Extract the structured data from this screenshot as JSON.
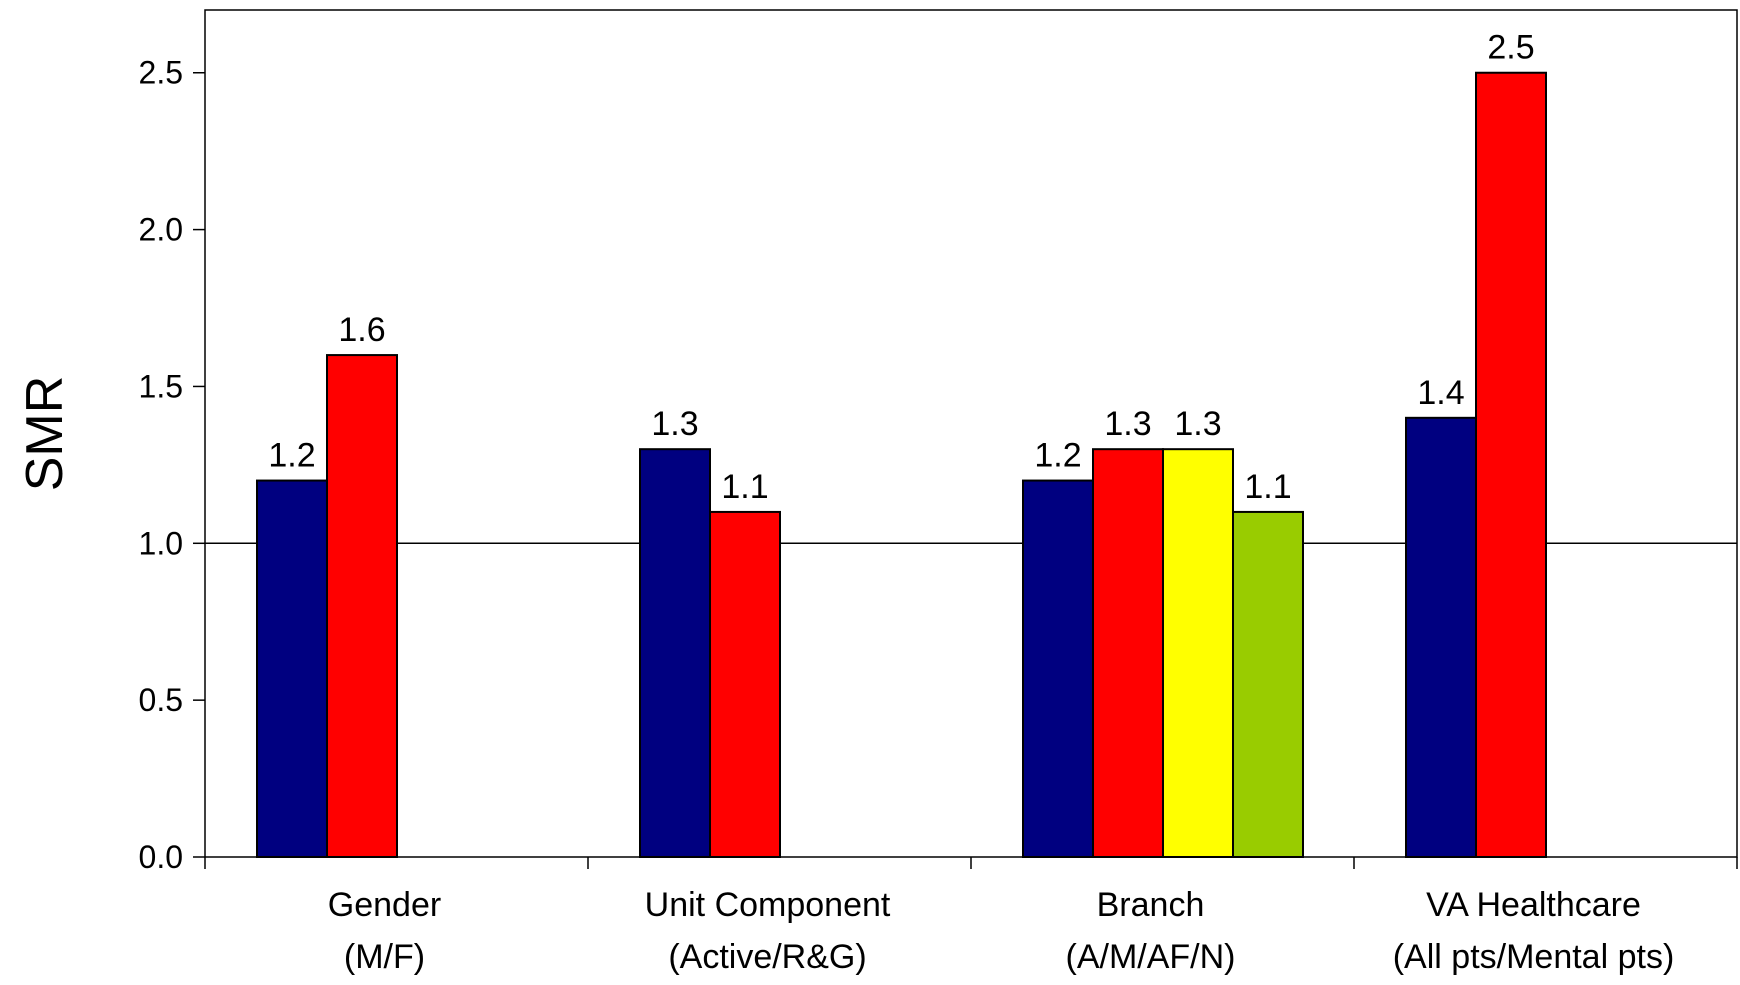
{
  "chart_data": {
    "type": "bar",
    "ylabel": "SMR",
    "xlabel": "",
    "title": "",
    "ylim": [
      0,
      2.7
    ],
    "yticks": [
      0.0,
      0.5,
      1.0,
      1.5,
      2.0,
      2.5
    ],
    "ytick_labels": [
      "0.0",
      "0.5",
      "1.0",
      "1.5",
      "2.0",
      "2.5"
    ],
    "reference_line": 1.0,
    "legend": "none",
    "grid": false,
    "groups": [
      {
        "label_lines": [
          "Gender",
          "(M/F)"
        ],
        "bars": [
          {
            "value": 1.2,
            "label": "1.2",
            "color": "#000080"
          },
          {
            "value": 1.6,
            "label": "1.6",
            "color": "#ff0000"
          }
        ]
      },
      {
        "label_lines": [
          "Unit Component",
          "(Active/R&G)"
        ],
        "bars": [
          {
            "value": 1.3,
            "label": "1.3",
            "color": "#000080"
          },
          {
            "value": 1.1,
            "label": "1.1",
            "color": "#ff0000"
          }
        ]
      },
      {
        "label_lines": [
          "Branch",
          "(A/M/AF/N)"
        ],
        "bars": [
          {
            "value": 1.2,
            "label": "1.2",
            "color": "#000080"
          },
          {
            "value": 1.3,
            "label": "1.3",
            "color": "#ff0000"
          },
          {
            "value": 1.3,
            "label": "1.3",
            "color": "#ffff00"
          },
          {
            "value": 1.1,
            "label": "1.1",
            "color": "#99cc00"
          }
        ]
      },
      {
        "label_lines": [
          "VA Healthcare",
          "(All pts/Mental pts)"
        ],
        "bars": [
          {
            "value": 1.4,
            "label": "1.4",
            "color": "#000080"
          },
          {
            "value": 2.5,
            "label": "2.5",
            "color": "#ff0000"
          }
        ]
      }
    ]
  }
}
